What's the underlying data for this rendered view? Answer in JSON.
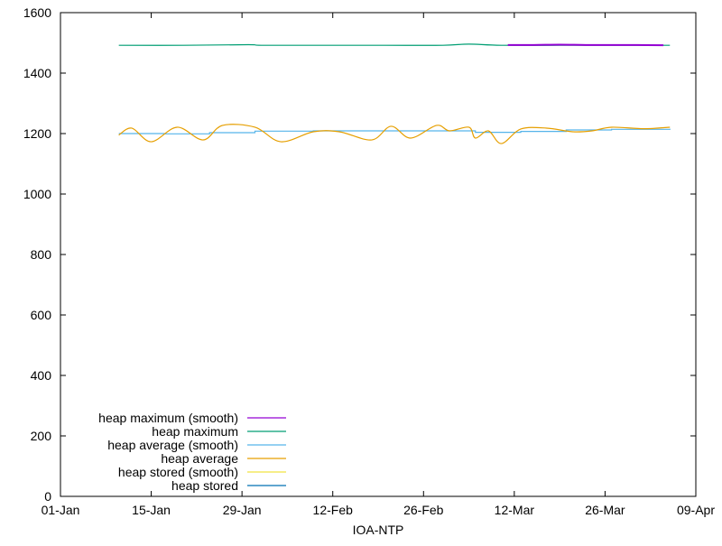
{
  "chart_data": {
    "type": "line",
    "title": "",
    "xlabel": "IOA-NTP",
    "ylabel": "",
    "ylim": [
      0,
      1600
    ],
    "xlim": [
      "01-Jan",
      "09-Apr"
    ],
    "yticks": [
      "0",
      "200",
      "400",
      "600",
      "800",
      "1000",
      "1200",
      "1400",
      "1600"
    ],
    "xticks": [
      "01-Jan",
      "15-Jan",
      "29-Jan",
      "12-Feb",
      "26-Feb",
      "12-Mar",
      "26-Mar",
      "09-Apr"
    ],
    "grid": false,
    "legend_position": "bottom-left",
    "series": [
      {
        "name": "heap maximum (smooth)",
        "color": "#9400d3",
        "x": [
          "11-Mar",
          "15-Mar",
          "19-Mar",
          "23-Mar",
          "27-Mar",
          "31-Mar",
          "04-Apr"
        ],
        "values": [
          1493,
          1493,
          1494,
          1493,
          1493,
          1493,
          1492
        ]
      },
      {
        "name": "heap maximum",
        "color": "#009e73",
        "x": [
          "10-Jan",
          "20-Jan",
          "30-Jan",
          "01-Feb",
          "10-Feb",
          "20-Feb",
          "01-Mar",
          "05-Mar",
          "10-Mar",
          "20-Mar",
          "30-Mar",
          "05-Apr"
        ],
        "values": [
          1492,
          1492,
          1494,
          1492,
          1492,
          1492,
          1492,
          1496,
          1492,
          1492,
          1492,
          1492
        ]
      },
      {
        "name": "heap average (smooth)",
        "color": "#56b4e9",
        "x": [
          "10-Jan",
          "17-Jan",
          "24-Jan",
          "31-Jan",
          "09-Feb",
          "18-Feb",
          "27-Feb",
          "06-Mar",
          "13-Mar",
          "20-Mar",
          "27-Mar",
          "05-Apr"
        ],
        "values": [
          1200,
          1199,
          1203,
          1208,
          1209,
          1209,
          1209,
          1204,
          1207,
          1212,
          1214,
          1216
        ]
      },
      {
        "name": "heap average",
        "color": "#e69f00",
        "x": [
          "10-Jan",
          "12-Jan",
          "15-Jan",
          "19-Jan",
          "23-Jan",
          "26-Jan",
          "31-Jan",
          "04-Feb",
          "09-Feb",
          "13-Feb",
          "18-Feb",
          "21-Feb",
          "24-Feb",
          "28-Feb",
          "02-Mar",
          "05-Mar",
          "06-Mar",
          "08-Mar",
          "10-Mar",
          "13-Mar",
          "17-Mar",
          "21-Mar",
          "24-Mar",
          "27-Mar",
          "01-Apr",
          "05-Apr"
        ],
        "values": [
          1195,
          1218,
          1173,
          1221,
          1179,
          1227,
          1221,
          1173,
          1206,
          1206,
          1179,
          1224,
          1185,
          1227,
          1209,
          1221,
          1185,
          1209,
          1167,
          1215,
          1218,
          1206,
          1209,
          1221,
          1216,
          1221
        ]
      },
      {
        "name": "heap stored (smooth)",
        "color": "#f0e442",
        "x": [],
        "values": []
      },
      {
        "name": "heap stored",
        "color": "#0072b2",
        "x": [],
        "values": []
      }
    ]
  }
}
